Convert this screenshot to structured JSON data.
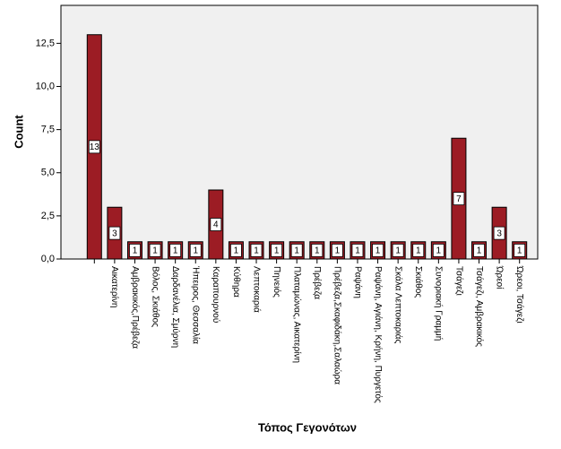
{
  "chart_data": {
    "type": "bar",
    "x_label": "Τόπος Γεγονότων",
    "y_label": "Count",
    "categories": [
      null,
      "Αικατερίνη",
      "Αμβρακικός,Πρέβεζα",
      "Βόλος, Σκιάθος",
      "Δαρδανέλια, Σμύρνη",
      "Ήπειρος, Θεσσαλία",
      "Καραπουρνού",
      "Κύθηρα",
      "Λεπτοκαριά",
      "Πηνειός",
      "Πλαταμώνας, Αικατερίνη",
      "Πρέβεζα",
      "Πρέβεζα,Σκαφιδάκη,Σαλαώρα",
      "Ραψάνη",
      "Ραψάνη, Αγιάνη, Κρήνη, Πυργετός",
      "Σκάλα Λεπτοκαριάς",
      "Σκιάθος",
      "Συνοριακή Γραμμή",
      "Τσάγεζι",
      "Τσάγεζι, Αμβρακικός",
      "Ώρεοί",
      "Ώρεοι, Τσάγεζι"
    ],
    "values": [
      13,
      3,
      1,
      1,
      1,
      1,
      4,
      1,
      1,
      1,
      1,
      1,
      1,
      1,
      1,
      1,
      1,
      1,
      7,
      1,
      3,
      1
    ],
    "color": "#9c1c24",
    "ylim": [
      0,
      14.7
    ],
    "yticks": [
      {
        "value": 0,
        "label": "0,0"
      },
      {
        "value": 2.5,
        "label": "2,5"
      },
      {
        "value": 5,
        "label": "5,0"
      },
      {
        "value": 7.5,
        "label": "7,5"
      },
      {
        "value": 10,
        "label": "10,0"
      },
      {
        "value": 12.5,
        "label": "12,5"
      }
    ]
  }
}
